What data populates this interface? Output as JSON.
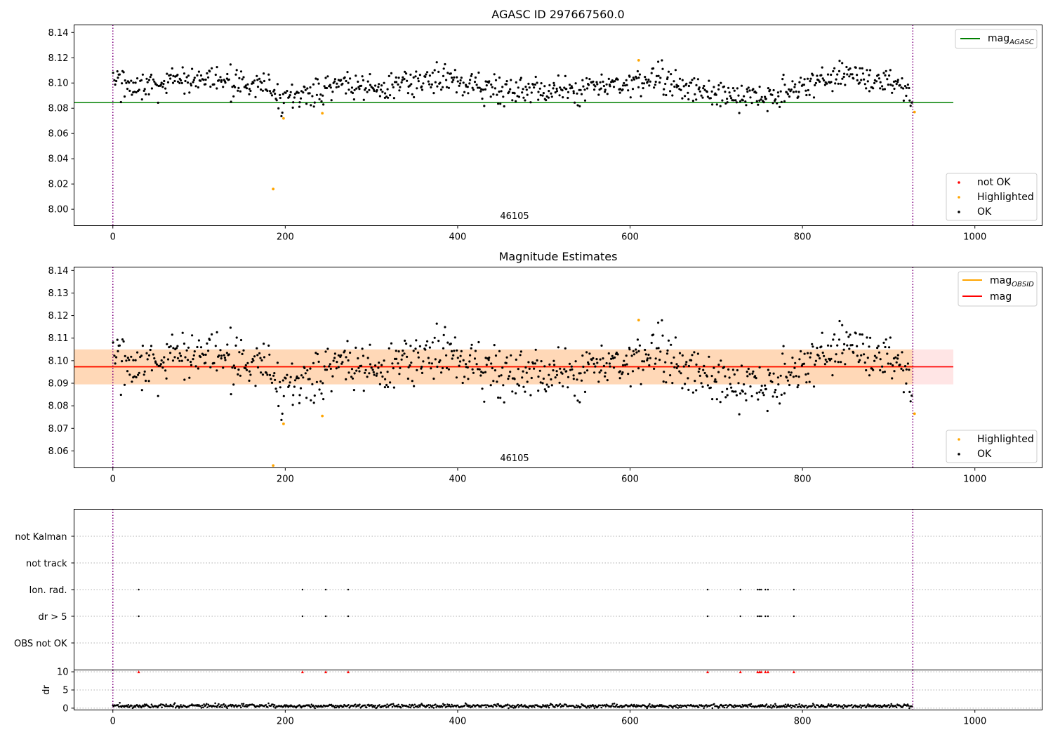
{
  "chart_data": [
    {
      "type": "scatter",
      "title": "AGASC ID 297667560.0",
      "obsid_label": "46105",
      "xlim": [
        -45,
        1078
      ],
      "ylim": [
        7.987,
        8.146
      ],
      "x_ticks": [
        0,
        200,
        400,
        600,
        800,
        1000
      ],
      "x_tick_labels": [
        "0",
        "200",
        "400",
        "600",
        "800",
        "1000"
      ],
      "y_ticks": [
        8.0,
        8.02,
        8.04,
        8.06,
        8.08,
        8.1,
        8.12,
        8.14
      ],
      "y_tick_labels": [
        "8.00",
        "8.02",
        "8.04",
        "8.06",
        "8.08",
        "8.10",
        "8.12",
        "8.14"
      ],
      "vlines": [
        0,
        928
      ],
      "hline": {
        "y": 8.0845,
        "x_range": [
          -45,
          975
        ],
        "color": "#008000"
      },
      "legend_lines": [
        {
          "label": "mag",
          "sub": "AGASC",
          "color": "#008000"
        }
      ],
      "legend_points": [
        {
          "label": "not OK",
          "color": "#ff0000"
        },
        {
          "label": "Highlighted",
          "color": "#ffa500"
        },
        {
          "label": "OK",
          "color": "#000000"
        }
      ],
      "highlighted": [
        [
          186,
          8.016
        ],
        [
          198,
          8.072
        ],
        [
          243,
          8.076
        ],
        [
          610,
          8.118
        ],
        [
          930,
          8.077
        ]
      ],
      "ok_trend": [
        [
          0,
          8.101
        ],
        [
          60,
          8.097
        ],
        [
          90,
          8.102
        ],
        [
          120,
          8.103
        ],
        [
          150,
          8.1
        ],
        [
          180,
          8.094
        ],
        [
          200,
          8.087
        ],
        [
          230,
          8.091
        ],
        [
          265,
          8.1
        ],
        [
          300,
          8.095
        ],
        [
          340,
          8.1
        ],
        [
          380,
          8.103
        ],
        [
          400,
          8.101
        ],
        [
          430,
          8.096
        ],
        [
          470,
          8.094
        ],
        [
          510,
          8.094
        ],
        [
          560,
          8.097
        ],
        [
          600,
          8.102
        ],
        [
          640,
          8.103
        ],
        [
          660,
          8.096
        ],
        [
          700,
          8.092
        ],
        [
          730,
          8.089
        ],
        [
          760,
          8.09
        ],
        [
          800,
          8.097
        ],
        [
          850,
          8.108
        ],
        [
          880,
          8.104
        ],
        [
          915,
          8.096
        ],
        [
          928,
          8.081
        ]
      ],
      "ok_count": 860,
      "ok_noise": 0.0055
    },
    {
      "type": "scatter",
      "title": "Magnitude Estimates",
      "obsid_label": "46105",
      "xlim": [
        -45,
        1078
      ],
      "ylim": [
        8.0525,
        8.1415
      ],
      "x_ticks": [
        0,
        200,
        400,
        600,
        800,
        1000
      ],
      "x_tick_labels": [
        "0",
        "200",
        "400",
        "600",
        "800",
        "1000"
      ],
      "y_ticks": [
        8.06,
        8.07,
        8.08,
        8.09,
        8.1,
        8.11,
        8.12,
        8.13,
        8.14
      ],
      "y_tick_labels": [
        "8.06",
        "8.07",
        "8.08",
        "8.09",
        "8.10",
        "8.11",
        "8.12",
        "8.13",
        "8.14"
      ],
      "vlines": [
        0,
        928
      ],
      "obsid_band": {
        "x_range": [
          -45,
          928
        ],
        "y_range": [
          8.0895,
          8.105
        ],
        "color": "#ffa500"
      },
      "mag_band": {
        "x_range": [
          -45,
          975
        ],
        "y_range": [
          8.0895,
          8.105
        ],
        "color": "#ff0000"
      },
      "hline_obsid": {
        "y": 8.0973,
        "x_range": [
          -45,
          928
        ],
        "color": "#ffa500"
      },
      "hline_mag": {
        "y": 8.0973,
        "x_range": [
          -45,
          975
        ],
        "color": "#ff0000"
      },
      "legend_lines": [
        {
          "label": "mag",
          "sub": "OBSID",
          "color": "#ffa500"
        },
        {
          "label": "mag",
          "sub": "",
          "color": "#ff0000"
        }
      ],
      "legend_points": [
        {
          "label": "Highlighted",
          "color": "#ffa500"
        },
        {
          "label": "OK",
          "color": "#000000"
        }
      ],
      "highlighted": [
        [
          186,
          8.0535
        ],
        [
          198,
          8.072
        ],
        [
          243,
          8.0755
        ],
        [
          610,
          8.118
        ],
        [
          930,
          8.0765
        ]
      ],
      "ok_trend": [
        [
          0,
          8.101
        ],
        [
          60,
          8.097
        ],
        [
          90,
          8.102
        ],
        [
          120,
          8.103
        ],
        [
          150,
          8.1
        ],
        [
          180,
          8.094
        ],
        [
          200,
          8.087
        ],
        [
          230,
          8.091
        ],
        [
          265,
          8.1
        ],
        [
          300,
          8.095
        ],
        [
          340,
          8.1
        ],
        [
          380,
          8.103
        ],
        [
          400,
          8.101
        ],
        [
          430,
          8.096
        ],
        [
          470,
          8.094
        ],
        [
          510,
          8.094
        ],
        [
          560,
          8.097
        ],
        [
          600,
          8.102
        ],
        [
          640,
          8.103
        ],
        [
          660,
          8.096
        ],
        [
          700,
          8.092
        ],
        [
          730,
          8.089
        ],
        [
          760,
          8.09
        ],
        [
          800,
          8.097
        ],
        [
          850,
          8.108
        ],
        [
          880,
          8.104
        ],
        [
          915,
          8.096
        ],
        [
          928,
          8.081
        ]
      ],
      "ok_count": 860,
      "ok_noise": 0.0055
    },
    {
      "type": "scatter",
      "xlim": [
        -45,
        1078
      ],
      "categories": [
        "OBS not OK",
        "dr > 5",
        "Ion. rad.",
        "not track",
        "not Kalman"
      ],
      "vlines": [
        0,
        928
      ],
      "flag_x": [
        30,
        220,
        247,
        273,
        690,
        728,
        748,
        750,
        752,
        757,
        760,
        790
      ],
      "flags": {
        "not Kalman": [],
        "not track": [],
        "Ion. rad.": [
          30,
          220,
          247,
          273,
          690,
          728,
          748,
          750,
          752,
          757,
          760,
          790
        ],
        "dr > 5": [
          30,
          220,
          247,
          273,
          690,
          728,
          748,
          750,
          752,
          757,
          760,
          790
        ],
        "OBS not OK": []
      }
    },
    {
      "type": "line",
      "ylabel": "dr",
      "xlim": [
        -45,
        1078
      ],
      "ylim": [
        -0.5,
        10.5
      ],
      "x_ticks": [
        0,
        200,
        400,
        600,
        800,
        1000
      ],
      "x_tick_labels": [
        "0",
        "200",
        "400",
        "600",
        "800",
        "1000"
      ],
      "y_ticks": [
        0,
        5,
        10
      ],
      "y_tick_labels": [
        "0",
        "5",
        "10"
      ],
      "vlines": [
        0,
        928
      ],
      "clipped_marker_y": 10,
      "clipped_marker_x": [
        30,
        220,
        247,
        273,
        690,
        728,
        748,
        750,
        752,
        757,
        760,
        790
      ],
      "dr_level": 0.6,
      "dr_noise": 0.25,
      "dr_count": 930
    }
  ]
}
